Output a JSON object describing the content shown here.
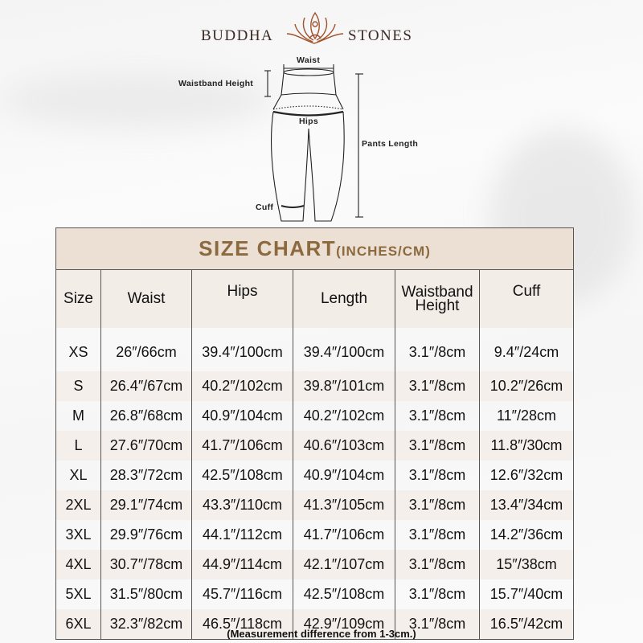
{
  "brand": {
    "left": "BUDDHA",
    "right": "STONES",
    "accent": "#a0522d"
  },
  "diagram": {
    "waist": "Waist",
    "waistband_height": "Waistband Height",
    "hips": "Hips",
    "pants_length": "Pants Length",
    "cuff": "Cuff"
  },
  "table": {
    "title": "SIZE CHART",
    "title_unit": "(INCHES/CM)",
    "headers": [
      "Size",
      "Waist",
      "Hips",
      "Length",
      "Waistband Height",
      "Cuff"
    ],
    "rows": [
      [
        "XS",
        "26″/66cm",
        "39.4″/100cm",
        "39.4″/100cm",
        "3.1″/8cm",
        "9.4″/24cm"
      ],
      [
        "S",
        "26.4″/67cm",
        "40.2″/102cm",
        "39.8″/101cm",
        "3.1″/8cm",
        "10.2″/26cm"
      ],
      [
        "M",
        "26.8″/68cm",
        "40.9″/104cm",
        "40.2″/102cm",
        "3.1″/8cm",
        "11″/28cm"
      ],
      [
        "L",
        "27.6″/70cm",
        "41.7″/106cm",
        "40.6″/103cm",
        "3.1″/8cm",
        "11.8″/30cm"
      ],
      [
        "XL",
        "28.3″/72cm",
        "42.5″/108cm",
        "40.9″/104cm",
        "3.1″/8cm",
        "12.6″/32cm"
      ],
      [
        "2XL",
        "29.1″/74cm",
        "43.3″/110cm",
        "41.3″/105cm",
        "3.1″/8cm",
        "13.4″/34cm"
      ],
      [
        "3XL",
        "29.9″/76cm",
        "44.1″/112cm",
        "41.7″/106cm",
        "3.1″/8cm",
        "14.2″/36cm"
      ],
      [
        "4XL",
        "30.7″/78cm",
        "44.9″/114cm",
        "42.1″/107cm",
        "3.1″/8cm",
        "15″/38cm"
      ],
      [
        "5XL",
        "31.5″/80cm",
        "45.7″/116cm",
        "42.5″/108cm",
        "3.1″/8cm",
        "15.7″/40cm"
      ],
      [
        "6XL",
        "32.3″/82cm",
        "46.5″/118cm",
        "42.9″/109cm",
        "3.1″/8cm",
        "16.5″/42cm"
      ]
    ],
    "colors": {
      "title_bg": "#ecdfd3",
      "accent": "#8a6a3e"
    }
  },
  "note": "(Measurement difference from 1-3cm.)"
}
